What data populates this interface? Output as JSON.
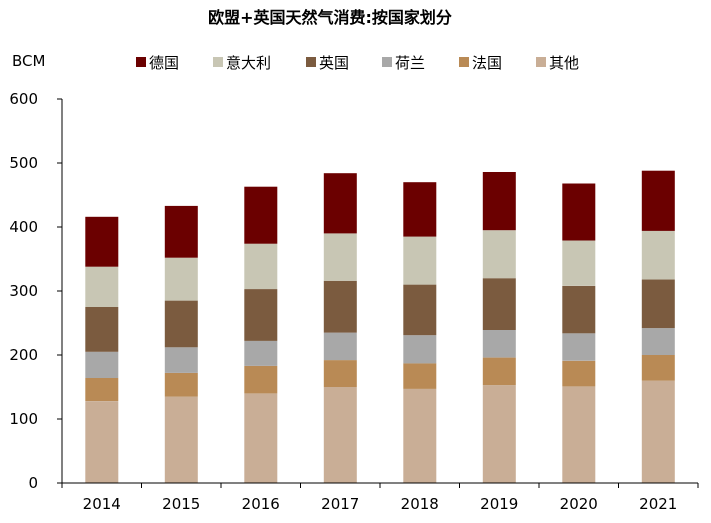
{
  "chart_data": {
    "type": "bar",
    "stacked": true,
    "title": "欧盟+英国天然气消费:按国家划分",
    "unit_label": "BCM",
    "categories": [
      "2014",
      "2015",
      "2016",
      "2017",
      "2018",
      "2019",
      "2020",
      "2021"
    ],
    "ylim": [
      0,
      600
    ],
    "yticks": [
      0,
      100,
      200,
      300,
      400,
      500,
      600
    ],
    "legend_position": "top",
    "grid": false,
    "series": [
      {
        "name": "其他",
        "color": "#C9AE96",
        "values": [
          128,
          135,
          140,
          150,
          147,
          153,
          151,
          160
        ]
      },
      {
        "name": "法国",
        "color": "#B98A55",
        "values": [
          36,
          37,
          43,
          42,
          40,
          43,
          40,
          40
        ]
      },
      {
        "name": "荷兰",
        "color": "#A8A8A8",
        "values": [
          41,
          40,
          39,
          43,
          44,
          43,
          43,
          42
        ]
      },
      {
        "name": "英国",
        "color": "#7B5B3F",
        "values": [
          70,
          73,
          81,
          81,
          79,
          81,
          74,
          76
        ]
      },
      {
        "name": "意大利",
        "color": "#C8C6B4",
        "values": [
          63,
          67,
          71,
          74,
          75,
          75,
          71,
          76
        ]
      },
      {
        "name": "德国",
        "color": "#6B0000",
        "values": [
          78,
          81,
          89,
          94,
          85,
          91,
          89,
          94
        ]
      }
    ],
    "legend_order": [
      "德国",
      "意大利",
      "英国",
      "荷兰",
      "法国",
      "其他"
    ]
  }
}
